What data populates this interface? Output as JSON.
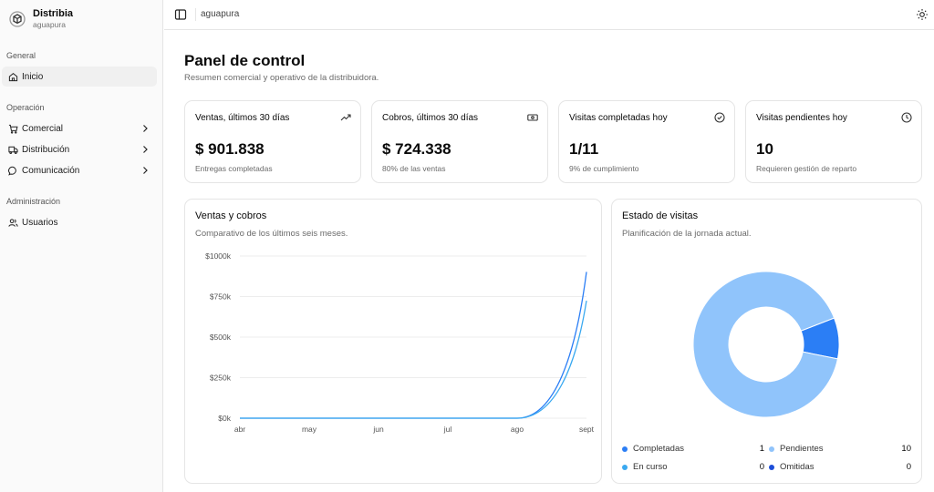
{
  "brand": {
    "name": "Distribia",
    "subtitle": "aguapura"
  },
  "sidebar": {
    "groups": [
      {
        "label": "General",
        "items": [
          {
            "label": "Inicio",
            "icon": "home-icon",
            "active": true
          }
        ]
      },
      {
        "label": "Operación",
        "items": [
          {
            "label": "Comercial",
            "icon": "cart-icon",
            "has_submenu": true
          },
          {
            "label": "Distribución",
            "icon": "truck-icon",
            "has_submenu": true
          },
          {
            "label": "Comunicación",
            "icon": "chat-icon",
            "has_submenu": true
          }
        ]
      },
      {
        "label": "Administración",
        "items": [
          {
            "label": "Usuarios",
            "icon": "users-icon"
          }
        ]
      }
    ]
  },
  "header": {
    "breadcrumb": "aguapura"
  },
  "page": {
    "title": "Panel de control",
    "subtitle": "Resumen comercial y operativo de la distribuidora."
  },
  "stats": [
    {
      "title": "Ventas, últimos 30 días",
      "value": "$ 901.838",
      "note": "Entregas completadas",
      "icon": "trending-up-icon"
    },
    {
      "title": "Cobros, últimos 30 días",
      "value": "$ 724.338",
      "note": "80% de las ventas",
      "icon": "banknote-icon"
    },
    {
      "title": "Visitas completadas hoy",
      "value": "1/11",
      "note": "9% de cumplimiento",
      "icon": "check-circle-icon"
    },
    {
      "title": "Visitas pendientes hoy",
      "value": "10",
      "note": "Requieren gestión de reparto",
      "icon": "clock-icon"
    }
  ],
  "sales_panel": {
    "title": "Ventas y cobros",
    "subtitle": "Comparativo de los últimos seis meses."
  },
  "visits_panel": {
    "title": "Estado de visitas",
    "subtitle": "Planificación de la jornada actual.",
    "legend": [
      {
        "label": "Completadas",
        "value": "1",
        "color": "#2b7ef5"
      },
      {
        "label": "Pendientes",
        "value": "10",
        "color": "#90c4fb"
      },
      {
        "label": "En curso",
        "value": "0",
        "color": "#3aa9f0"
      },
      {
        "label": "Omitidas",
        "value": "0",
        "color": "#1d4ed8"
      }
    ]
  },
  "colors": {
    "ventas": "#2b7ef5",
    "cobros": "#3aa9f0",
    "pendientes": "#90c4fb",
    "completadas": "#2b7ef5"
  },
  "chart_data": [
    {
      "type": "line",
      "title": "Ventas y cobros",
      "categories": [
        "abr",
        "may",
        "jun",
        "jul",
        "ago",
        "sept"
      ],
      "y_ticks": [
        "$0k",
        "$250k",
        "$500k",
        "$750k",
        "$1000k"
      ],
      "ylim": [
        0,
        1000000
      ],
      "grid": true,
      "series": [
        {
          "values": [
            0,
            0,
            0,
            0,
            0,
            901838
          ],
          "color": "#2b7ef5"
        },
        {
          "values": [
            0,
            0,
            0,
            0,
            0,
            724338
          ],
          "color": "#3aa9f0"
        }
      ]
    },
    {
      "type": "pie",
      "title": "Estado de visitas",
      "donut": true,
      "categories": [
        "Completadas",
        "Pendientes",
        "En curso",
        "Omitidas"
      ],
      "values": [
        1,
        10,
        0,
        0
      ],
      "colors": [
        "#2b7ef5",
        "#90c4fb",
        "#3aa9f0",
        "#1d4ed8"
      ]
    }
  ]
}
